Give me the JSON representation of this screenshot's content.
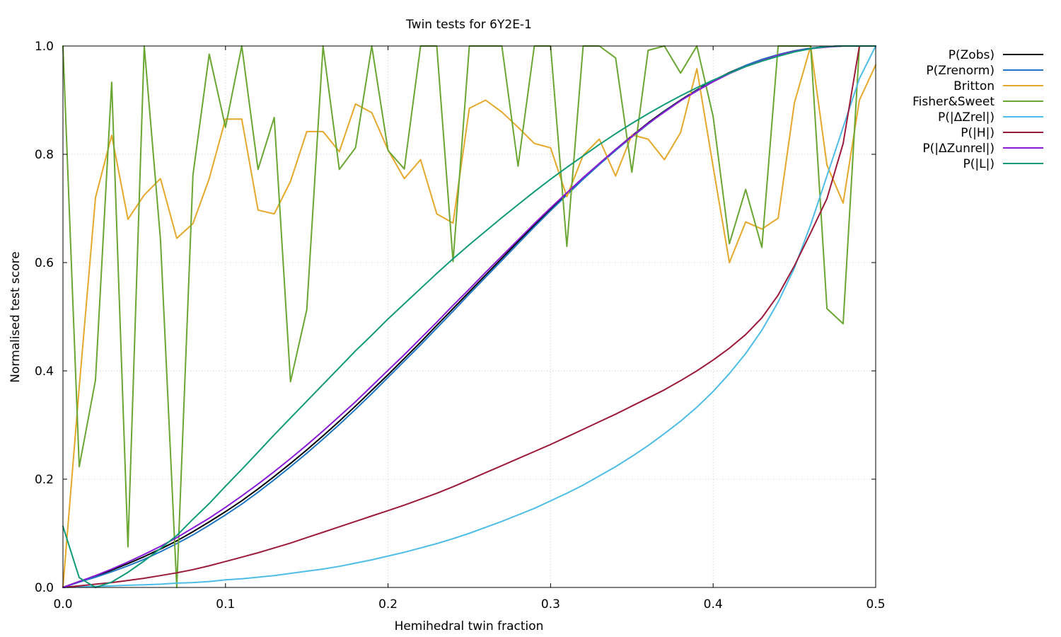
{
  "chart_data": {
    "type": "line",
    "title": "Twin tests for 6Y2E-1",
    "xlabel": "Hemihedral twin fraction",
    "ylabel": "Normalised test score",
    "xlim": [
      0,
      0.5
    ],
    "ylim": [
      0,
      1
    ],
    "xticks": [
      "0.0",
      "0.1",
      "0.2",
      "0.3",
      "0.4",
      "0.5"
    ],
    "yticks": [
      "0.0",
      "0.2",
      "0.4",
      "0.6",
      "0.8",
      "1.0"
    ],
    "grid": true,
    "legend_position": "outside-top-right",
    "x": [
      0.0,
      0.01,
      0.02,
      0.03,
      0.04,
      0.05,
      0.06,
      0.07,
      0.08,
      0.09,
      0.1,
      0.11,
      0.12,
      0.13,
      0.14,
      0.15,
      0.16,
      0.17,
      0.18,
      0.19,
      0.2,
      0.21,
      0.22,
      0.23,
      0.24,
      0.25,
      0.26,
      0.27,
      0.28,
      0.29,
      0.3,
      0.31,
      0.32,
      0.33,
      0.34,
      0.35,
      0.36,
      0.37,
      0.38,
      0.39,
      0.4,
      0.41,
      0.42,
      0.43,
      0.44,
      0.45,
      0.46,
      0.47,
      0.48,
      0.49,
      0.5
    ],
    "series": [
      {
        "name": "P(Zobs)",
        "color": "#000000",
        "values": [
          0.0,
          0.011,
          0.021,
          0.032,
          0.044,
          0.057,
          0.071,
          0.086,
          0.103,
          0.121,
          0.14,
          0.16,
          0.182,
          0.205,
          0.229,
          0.254,
          0.28,
          0.307,
          0.335,
          0.364,
          0.393,
          0.423,
          0.453,
          0.484,
          0.515,
          0.546,
          0.577,
          0.608,
          0.639,
          0.669,
          0.699,
          0.728,
          0.756,
          0.783,
          0.809,
          0.834,
          0.858,
          0.88,
          0.9,
          0.919,
          0.936,
          0.951,
          0.964,
          0.975,
          0.984,
          0.991,
          0.996,
          0.999,
          1.0,
          1.0,
          1.0
        ]
      },
      {
        "name": "P(Zrenorm)",
        "color": "#1f77c4",
        "values": [
          0.0,
          0.01,
          0.019,
          0.029,
          0.04,
          0.052,
          0.066,
          0.081,
          0.097,
          0.115,
          0.134,
          0.154,
          0.176,
          0.199,
          0.223,
          0.248,
          0.274,
          0.301,
          0.329,
          0.358,
          0.388,
          0.418,
          0.448,
          0.479,
          0.51,
          0.542,
          0.573,
          0.604,
          0.635,
          0.666,
          0.696,
          0.725,
          0.754,
          0.781,
          0.807,
          0.832,
          0.856,
          0.879,
          0.899,
          0.918,
          0.935,
          0.95,
          0.964,
          0.975,
          0.984,
          0.991,
          0.996,
          0.999,
          1.0,
          1.0,
          1.0
        ]
      },
      {
        "name": "Britton",
        "color": "#e6a82a",
        "values": [
          0.0,
          0.37,
          0.72,
          0.835,
          0.68,
          0.725,
          0.755,
          0.645,
          0.672,
          0.755,
          0.865,
          0.865,
          0.697,
          0.69,
          0.75,
          0.842,
          0.842,
          0.805,
          0.893,
          0.877,
          0.808,
          0.755,
          0.79,
          0.69,
          0.673,
          0.885,
          0.9,
          0.878,
          0.85,
          0.82,
          0.812,
          0.722,
          0.798,
          0.828,
          0.76,
          0.836,
          0.828,
          0.79,
          0.84,
          0.958,
          0.777,
          0.6,
          0.675,
          0.662,
          0.682,
          0.895,
          1.0,
          0.78,
          0.71,
          0.9,
          0.965
        ]
      },
      {
        "name": "Fisher&Sweet",
        "color": "#6aa632",
        "values": [
          1.0,
          0.223,
          0.383,
          0.933,
          0.075,
          1.0,
          0.642,
          0.0,
          0.762,
          0.985,
          0.85,
          1.0,
          0.772,
          0.868,
          0.38,
          0.513,
          1.0,
          0.772,
          0.812,
          1.0,
          0.807,
          0.773,
          1.0,
          1.0,
          0.602,
          1.0,
          1.0,
          1.0,
          0.778,
          1.0,
          1.0,
          0.63,
          1.0,
          1.0,
          0.978,
          0.767,
          0.992,
          1.0,
          0.95,
          1.0,
          0.87,
          0.635,
          0.735,
          0.628,
          1.0,
          1.0,
          1.0,
          0.515,
          0.487,
          1.0,
          1.0
        ]
      },
      {
        "name": "P(|ΔZrel|)",
        "color": "#4dbde8",
        "values": [
          0.0,
          0.001,
          0.002,
          0.003,
          0.004,
          0.005,
          0.006,
          0.008,
          0.009,
          0.011,
          0.014,
          0.016,
          0.019,
          0.022,
          0.026,
          0.03,
          0.034,
          0.039,
          0.045,
          0.051,
          0.058,
          0.065,
          0.073,
          0.081,
          0.09,
          0.1,
          0.111,
          0.122,
          0.134,
          0.146,
          0.16,
          0.174,
          0.189,
          0.206,
          0.223,
          0.242,
          0.262,
          0.284,
          0.307,
          0.333,
          0.362,
          0.395,
          0.432,
          0.475,
          0.527,
          0.59,
          0.67,
          0.76,
          0.85,
          0.94,
          1.0
        ]
      },
      {
        "name": "P(|H|)",
        "color": "#9b1a3a",
        "values": [
          0.0,
          0.003,
          0.006,
          0.009,
          0.013,
          0.017,
          0.022,
          0.027,
          0.033,
          0.04,
          0.048,
          0.056,
          0.064,
          0.073,
          0.082,
          0.092,
          0.102,
          0.112,
          0.122,
          0.132,
          0.142,
          0.152,
          0.163,
          0.174,
          0.186,
          0.199,
          0.212,
          0.225,
          0.238,
          0.251,
          0.264,
          0.278,
          0.292,
          0.306,
          0.32,
          0.335,
          0.35,
          0.365,
          0.382,
          0.4,
          0.42,
          0.442,
          0.467,
          0.498,
          0.54,
          0.594,
          0.655,
          0.718,
          0.82,
          1.0,
          1.0
        ]
      },
      {
        "name": "P(|ΔZunrel|)",
        "color": "#8a1ad6",
        "values": [
          0.0,
          0.011,
          0.022,
          0.034,
          0.047,
          0.061,
          0.076,
          0.092,
          0.11,
          0.128,
          0.148,
          0.169,
          0.191,
          0.214,
          0.238,
          0.263,
          0.289,
          0.316,
          0.343,
          0.372,
          0.401,
          0.43,
          0.46,
          0.49,
          0.521,
          0.551,
          0.582,
          0.612,
          0.642,
          0.672,
          0.701,
          0.729,
          0.757,
          0.783,
          0.809,
          0.833,
          0.857,
          0.878,
          0.899,
          0.917,
          0.934,
          0.949,
          0.962,
          0.973,
          0.983,
          0.99,
          0.995,
          0.998,
          1.0,
          1.0,
          1.0
        ]
      },
      {
        "name": "P(|L|)",
        "color": "#0f9a77",
        "values": [
          0.113,
          0.018,
          0.0,
          0.01,
          0.028,
          0.049,
          0.072,
          0.096,
          0.126,
          0.155,
          0.187,
          0.218,
          0.25,
          0.282,
          0.313,
          0.344,
          0.375,
          0.406,
          0.437,
          0.466,
          0.496,
          0.524,
          0.552,
          0.58,
          0.607,
          0.633,
          0.658,
          0.683,
          0.707,
          0.731,
          0.754,
          0.776,
          0.797,
          0.818,
          0.838,
          0.857,
          0.875,
          0.892,
          0.908,
          0.923,
          0.937,
          0.95,
          0.962,
          0.972,
          0.981,
          0.989,
          0.995,
          0.999,
          1.0,
          1.0,
          1.0
        ]
      }
    ]
  }
}
